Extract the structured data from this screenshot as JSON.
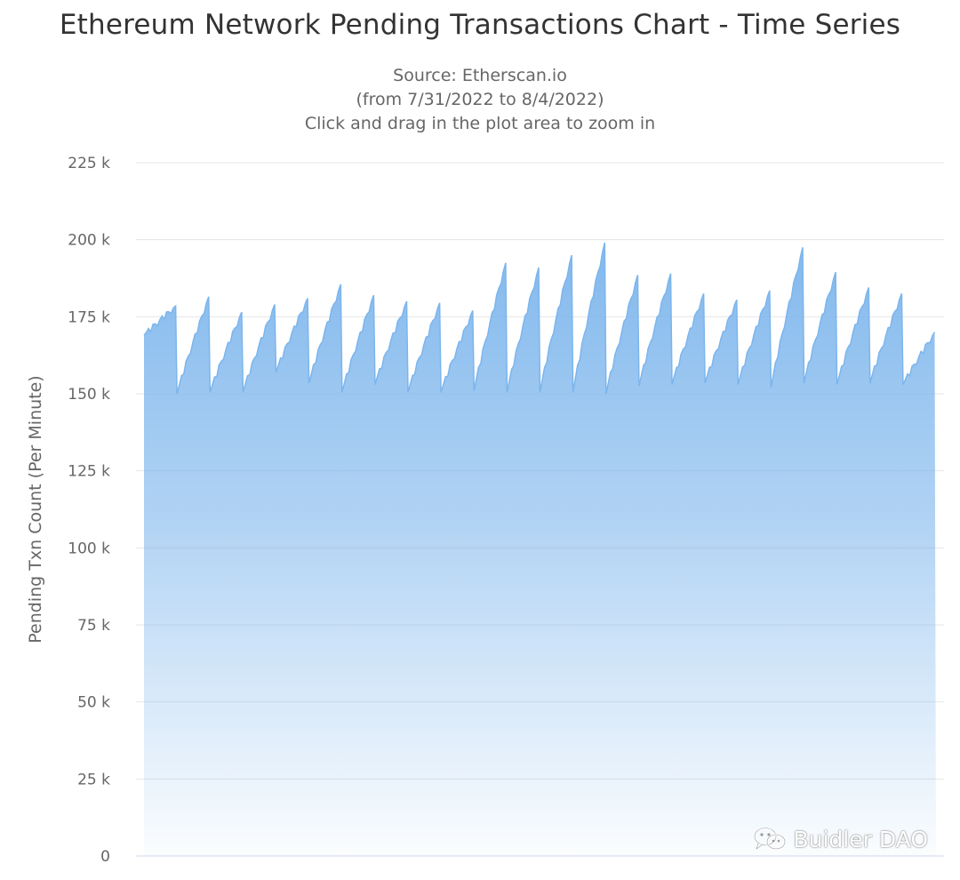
{
  "chart_data": {
    "type": "area",
    "title": "Ethereum Network Pending Transactions Chart - Time Series",
    "subtitle": [
      "Source: Etherscan.io",
      "(from 7/31/2022 to 8/4/2022)",
      "Click and drag in the plot area to zoom in"
    ],
    "xlabel": "",
    "ylabel": "Pending Txn Count (Per Minute)",
    "ylim": [
      0,
      225000
    ],
    "yticks": [
      0,
      25000,
      50000,
      75000,
      100000,
      125000,
      150000,
      175000,
      200000,
      225000
    ],
    "ytick_labels": [
      "0",
      "25 k",
      "50 k",
      "75 k",
      "100 k",
      "125 k",
      "150 k",
      "175 k",
      "200 k",
      "225 k"
    ],
    "x_start": "7/31/2022",
    "x_end": "8/4/2022",
    "grid": true,
    "color": "#7cb5ec",
    "series": [
      {
        "name": "",
        "sawtooth_cycles": [
          {
            "low": 169000,
            "high": 178500
          },
          {
            "low": 150000,
            "high": 181500
          },
          {
            "low": 150500,
            "high": 176500
          },
          {
            "low": 150500,
            "high": 179000
          },
          {
            "low": 157000,
            "high": 181000
          },
          {
            "low": 153500,
            "high": 185500
          },
          {
            "low": 150500,
            "high": 182000
          },
          {
            "low": 153000,
            "high": 180000
          },
          {
            "low": 150500,
            "high": 179500
          },
          {
            "low": 150500,
            "high": 177000
          },
          {
            "low": 151000,
            "high": 192500
          },
          {
            "low": 150500,
            "high": 191000
          },
          {
            "low": 150500,
            "high": 195000
          },
          {
            "low": 150500,
            "high": 199000
          },
          {
            "low": 150000,
            "high": 188500
          },
          {
            "low": 152500,
            "high": 189000
          },
          {
            "low": 153000,
            "high": 182500
          },
          {
            "low": 153500,
            "high": 180500
          },
          {
            "low": 153000,
            "high": 183500
          },
          {
            "low": 152000,
            "high": 197500
          },
          {
            "low": 153500,
            "high": 189500
          },
          {
            "low": 153000,
            "high": 184500
          },
          {
            "low": 153500,
            "high": 182500
          },
          {
            "low": 153000,
            "high": 170000
          }
        ]
      }
    ]
  },
  "watermark": {
    "icon": "wechat-icon",
    "text": "Buidler DAO"
  }
}
